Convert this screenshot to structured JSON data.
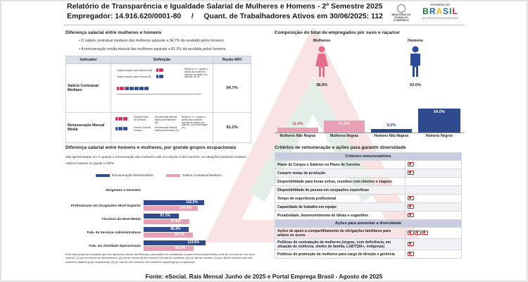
{
  "header": {
    "title": "Relatório de Transparência e Igualdade Salarial de Mulheres e Homens - 2º Semestre 2025",
    "employer": "Empregador: 14.916.620/0001-80",
    "divider": "/",
    "workers": "Quant. de Trabalhadores Ativos em 30/06/2025: 112"
  },
  "logos": {
    "ministry": [
      "MINISTÉRIO DO",
      "TRABALHO",
      "E EMPREGO"
    ],
    "gov_top": "GOVERNO DO",
    "brasil": [
      "B",
      "R",
      "A",
      "S",
      "I",
      "L"
    ],
    "brasil_colors": [
      "#1a7a3d",
      "#1a6ab3",
      "#f2b705",
      "#1a6ab3",
      "#1a7a3d",
      "#d3232a"
    ],
    "gov_sub": "DO LADO DO POVO BRASILEIRO"
  },
  "salary_diff": {
    "title": "Diferença salarial entre mulheres e homens",
    "bullets": [
      "O salário contratual mediano das mulheres equivale a 94.7% do recebido pelos homens.",
      "A remuneração média mensal das mulheres equivale a 91.2% da recebida pelos homens."
    ],
    "columns": [
      "Indicador",
      "Definição",
      "Razão M/H"
    ],
    "rows": [
      {
        "indicator": "Salário Contratual Mediano",
        "def_a": "Salário mediano para Mulheres (M)",
        "def_b": "Salário mediano para Homens (H)",
        "def_c": "Razão M / H = quanto o salário das mulheres equivale ao salário dos homens, em %",
        "value": "94.7%"
      },
      {
        "indicator": "Remuneração Mensal Média",
        "def_a": "Mulheres Total de Mulheres",
        "def_b": "Remuneração Mensal Média para Mulheres (M)",
        "def_c": "Razão M / H = quanto o salário das mulheres equivale ao salário dos homens, em porcentagem (%)",
        "def_d": "Homens Total de Homens",
        "def_e": "Remuneração Mensal Média para Homens (H)",
        "value": "91.2%"
      }
    ]
  },
  "occupation": {
    "title": "Diferença salarial entre homens e mulheres, por grande grupos ocupacionais",
    "intro": "São apresentadas em % quanto a remuneração das mulheres vale em relação à dos homens. As situações positivas mostram valores maiores ou iguais a 100%",
    "legend": [
      "Remuneração Mensal Média",
      "Salário Contratual Mediano"
    ],
    "colors": [
      "#2f4b8f",
      "#e8a0b4"
    ],
    "groups": [
      {
        "label": "Dirigentes e Gerentes",
        "a": null,
        "b": null
      },
      {
        "label": "Profissionais em Ocupações Nível Superior",
        "a": 116.5,
        "b": 104.0,
        "a_txt": "116.5%",
        "b_txt": "104.0%"
      },
      {
        "label": "Técnicos de Nível Médio",
        "a": 67.1,
        "b": 87.8,
        "a_txt": "67.1%",
        "b_txt": "87.8%"
      },
      {
        "label": "Trab. de Serviços Administrativos",
        "a": 86.9,
        "b": 94.7,
        "a_txt": "86.9%",
        "b_txt": "94.7%"
      },
      {
        "label": "Trab. em Atividade Operacionais",
        "a": 119.5,
        "b": 96.0,
        "a_txt": "119.5%",
        "b_txt": "96.0%"
      }
    ],
    "footnote": "Para cada grupo de ocupação que não apresenta cálculo da diferença, para salário de contratação ou para remuneração média, pode ter ocorrido um dos seus motivos: (1) por ter menos de três mulheres; (2) por ter menos de três homens; (3) não ter mulheres; (4) por não ter homens; (5) por não ter homens nem três mulheres naquele grupo ocupacional; (6) por não ter nem homens nem mulheres naquele grupo ocupacional"
  },
  "composition": {
    "title": "Composição do total de empregados por sexo e raça/cor",
    "women_label": "Mulheres",
    "women_pct": "38.0%",
    "men_label": "Homens",
    "men_pct": "63.0%",
    "bars": [
      {
        "label": "Mulheres Não Negras",
        "value": 11.0,
        "txt": "11.0%",
        "color": "#e8a0b4"
      },
      {
        "label": "Mulheres Negras",
        "value": 27.0,
        "txt": "27.0%",
        "color": "#e8a0b4"
      },
      {
        "label": "Homens Não Negros",
        "value": 8.0,
        "txt": "8.0%",
        "color": "#2f4b8f"
      },
      {
        "label": "Homens Negros",
        "value": 54.0,
        "txt": "54.0%",
        "color": "#2f4b8f"
      }
    ]
  },
  "criteria": {
    "title": "Critérios de remuneração e ações para garantir diversidade",
    "group1": "Critérios remuneratórios",
    "items1": [
      {
        "label": "Plano de Cargos e Salários ou Plano de Carreira",
        "flags": 1
      },
      {
        "label": "Cumprir metas de produção",
        "flags": 1
      },
      {
        "label": "Disponibilidade para horas extras, reuniões com clientes e viagens",
        "flags": 0
      },
      {
        "label": "Disponibilidade de pessoa em ocupações específicas",
        "flags": 0
      },
      {
        "label": "Tempo de experiência profissional",
        "flags": 1
      },
      {
        "label": "Capacidade de trabalho em equipe",
        "flags": 1
      },
      {
        "label": "Proatividade, desenvolvimento de ideias e sugestões",
        "flags": 1
      }
    ],
    "group2": "Ações para aumentar a diversidade",
    "items2": [
      {
        "label": "Ações de apoio a compartilhamento de obrigações familiares para ambos os sexos",
        "flags": 3
      },
      {
        "label": "Políticas de contratação de mulheres (negras, com deficiência, em situação de violência, chefes de família, LGBTQIA+, indígenas)",
        "flags": 1
      },
      {
        "label": "Políticas de promoção de mulheres para cargo de direção e gerência",
        "flags": 1
      }
    ]
  },
  "footer": "Fonte: eSocial. Rais Mensal Junho de 2025 e Portal Emprega Brasil - Agosto de 2025"
}
